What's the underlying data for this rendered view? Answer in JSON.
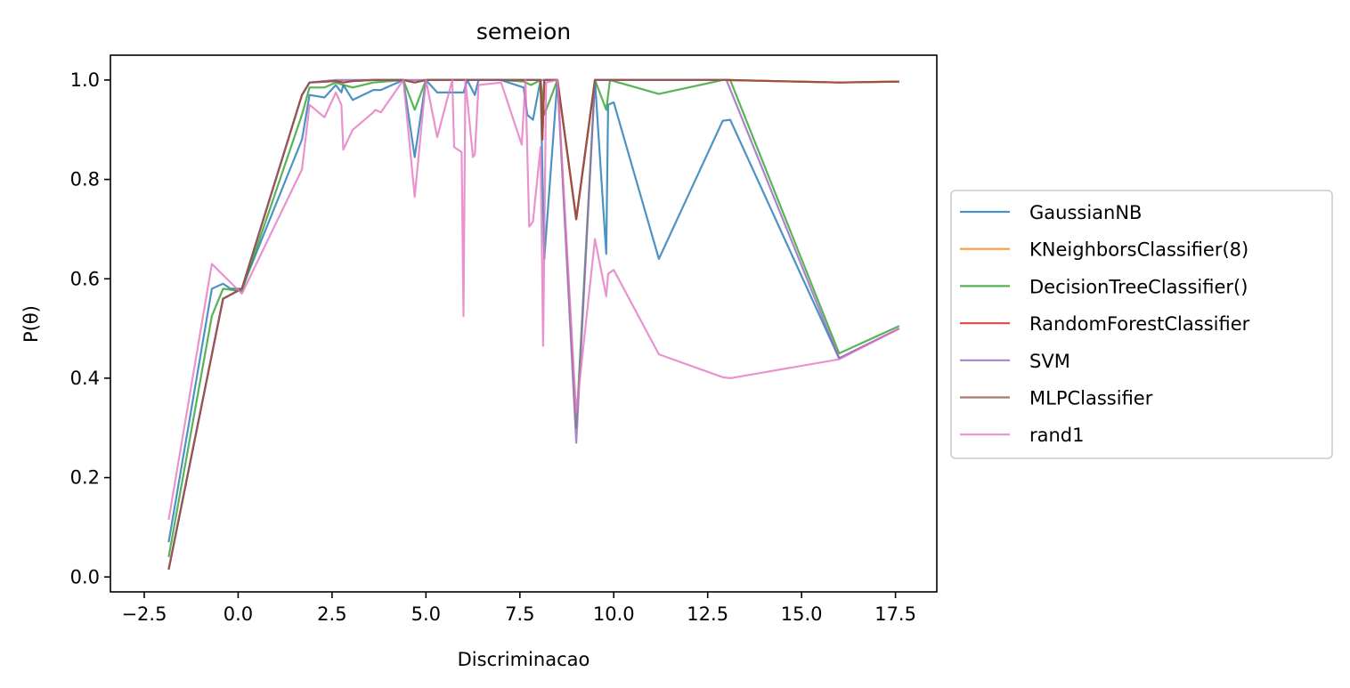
{
  "chart_data": {
    "type": "line",
    "title": "semeion",
    "xlabel": "Discriminacao",
    "ylabel": "P(θ)",
    "xlim": [
      -3.4,
      18.6
    ],
    "ylim": [
      -0.03,
      1.05
    ],
    "xticks": [
      -2.5,
      0.0,
      2.5,
      5.0,
      7.5,
      10.0,
      12.5,
      15.0,
      17.5
    ],
    "xtick_labels": [
      "−2.5",
      "0.0",
      "2.5",
      "5.0",
      "7.5",
      "10.0",
      "12.5",
      "15.0",
      "17.5"
    ],
    "yticks": [
      0.0,
      0.2,
      0.4,
      0.6,
      0.8,
      1.0
    ],
    "ytick_labels": [
      "0.0",
      "0.2",
      "0.4",
      "0.6",
      "0.8",
      "1.0"
    ],
    "grid": false,
    "legend_position": "outside-right",
    "series": [
      {
        "name": "GaussianNB",
        "color": "#1f77b4",
        "x": [
          -1.85,
          -0.7,
          -0.4,
          -0.2,
          0.1,
          1.7,
          1.9,
          2.3,
          2.6,
          2.75,
          2.8,
          3.05,
          3.6,
          3.8,
          4.4,
          4.7,
          5.0,
          5.3,
          5.8,
          6.0,
          6.1,
          6.3,
          6.4,
          7.0,
          7.6,
          7.7,
          7.85,
          8.05,
          8.15,
          8.5,
          9.0,
          9.5,
          9.8,
          9.85,
          10.0,
          11.2,
          12.9,
          13.1,
          16.0,
          17.6
        ],
        "values": [
          0.07,
          0.58,
          0.59,
          0.58,
          0.58,
          0.88,
          0.97,
          0.965,
          0.99,
          0.975,
          0.99,
          0.96,
          0.98,
          0.98,
          1.0,
          0.845,
          1.0,
          0.975,
          0.975,
          0.975,
          1.0,
          0.97,
          1.0,
          1.0,
          0.985,
          0.93,
          0.92,
          1.0,
          0.64,
          1.0,
          0.72,
          1.0,
          0.65,
          0.95,
          0.955,
          0.64,
          0.918,
          0.92,
          0.44,
          0.5
        ]
      },
      {
        "name": "KNeighborsClassifier(8)",
        "color": "#ff7f0e",
        "x": [
          -1.85,
          -0.4,
          0.1,
          1.7,
          1.9,
          2.6,
          2.8,
          3.05,
          3.6,
          4.4,
          4.7,
          5.0,
          6.0,
          7.0,
          8.05,
          8.1,
          8.15,
          8.5,
          9.0,
          9.5,
          13.0,
          16.0,
          17.6
        ],
        "values": [
          0.015,
          0.56,
          0.58,
          0.97,
          0.995,
          0.998,
          0.995,
          0.998,
          1.0,
          1.0,
          0.995,
          1.0,
          1.0,
          1.0,
          1.0,
          0.88,
          1.0,
          1.0,
          0.72,
          1.0,
          1.0,
          0.995,
          0.997
        ]
      },
      {
        "name": "DecisionTreeClassifier()",
        "color": "#2ca02c",
        "x": [
          -1.85,
          -0.7,
          -0.4,
          0.1,
          1.7,
          1.9,
          2.3,
          2.6,
          2.8,
          3.05,
          3.6,
          4.4,
          4.7,
          5.0,
          6.0,
          7.0,
          7.6,
          7.8,
          8.05,
          8.15,
          8.5,
          9.0,
          9.5,
          9.8,
          9.9,
          11.2,
          12.9,
          13.1,
          16.0,
          17.6
        ],
        "values": [
          0.04,
          0.525,
          0.58,
          0.575,
          0.93,
          0.985,
          0.985,
          0.995,
          0.99,
          0.985,
          0.995,
          1.0,
          0.94,
          1.0,
          1.0,
          1.0,
          0.997,
          0.99,
          1.0,
          0.93,
          1.0,
          0.3,
          1.0,
          0.94,
          1.0,
          0.972,
          1.0,
          1.0,
          0.45,
          0.505
        ]
      },
      {
        "name": "RandomForestClassifier",
        "color": "#d62728",
        "x": [
          -1.85,
          -0.4,
          0.1,
          1.7,
          1.9,
          2.6,
          2.8,
          3.05,
          3.6,
          4.4,
          4.7,
          5.0,
          6.0,
          7.0,
          8.05,
          8.1,
          8.15,
          8.5,
          9.0,
          9.5,
          13.0,
          16.0,
          17.6
        ],
        "values": [
          0.015,
          0.56,
          0.58,
          0.97,
          0.995,
          0.998,
          0.995,
          0.998,
          1.0,
          1.0,
          0.995,
          1.0,
          1.0,
          1.0,
          1.0,
          0.88,
          1.0,
          1.0,
          0.72,
          1.0,
          1.0,
          0.995,
          0.997
        ]
      },
      {
        "name": "SVM",
        "color": "#9467bd",
        "x": [
          -1.85,
          -0.4,
          0.1,
          1.7,
          1.9,
          2.6,
          3.6,
          4.4,
          5.0,
          6.0,
          7.0,
          8.05,
          8.5,
          9.0,
          9.5,
          13.0,
          16.0,
          17.6
        ],
        "values": [
          0.015,
          0.56,
          0.58,
          0.97,
          0.995,
          1.0,
          1.0,
          1.0,
          1.0,
          1.0,
          1.0,
          1.0,
          1.0,
          0.27,
          1.0,
          1.0,
          0.44,
          0.5
        ]
      },
      {
        "name": "MLPClassifier",
        "color": "#8c564b",
        "x": [
          -1.85,
          -0.4,
          0.1,
          1.7,
          1.9,
          2.6,
          2.8,
          3.05,
          3.6,
          4.4,
          4.7,
          5.0,
          6.0,
          7.0,
          8.05,
          8.1,
          8.15,
          8.5,
          9.0,
          9.5,
          13.0,
          16.0,
          17.6
        ],
        "values": [
          0.015,
          0.56,
          0.58,
          0.97,
          0.995,
          0.998,
          0.995,
          0.998,
          1.0,
          1.0,
          0.995,
          1.0,
          1.0,
          1.0,
          1.0,
          0.88,
          1.0,
          1.0,
          0.72,
          1.0,
          1.0,
          0.995,
          0.997
        ]
      },
      {
        "name": "rand1",
        "color": "#e377c2",
        "x": [
          -1.85,
          -0.7,
          0.1,
          1.7,
          1.9,
          2.3,
          2.6,
          2.75,
          2.8,
          3.05,
          3.6,
          3.65,
          3.8,
          4.4,
          4.7,
          5.0,
          5.3,
          5.7,
          5.75,
          5.95,
          6.0,
          6.05,
          6.25,
          6.3,
          6.4,
          7.0,
          7.55,
          7.65,
          7.75,
          7.85,
          8.05,
          8.12,
          8.2,
          8.5,
          9.0,
          9.5,
          9.8,
          9.85,
          10.0,
          11.2,
          12.9,
          13.1,
          16.0,
          17.6
        ],
        "values": [
          0.115,
          0.63,
          0.57,
          0.82,
          0.95,
          0.925,
          0.975,
          0.95,
          0.86,
          0.9,
          0.935,
          0.94,
          0.935,
          1.0,
          0.765,
          1.0,
          0.885,
          1.0,
          0.865,
          0.855,
          0.525,
          1.0,
          0.845,
          0.85,
          0.99,
          0.995,
          0.87,
          1.0,
          0.705,
          0.715,
          0.865,
          0.465,
          0.995,
          1.0,
          0.33,
          0.68,
          0.565,
          0.61,
          0.618,
          0.448,
          0.402,
          0.4,
          0.438,
          0.5
        ]
      }
    ]
  }
}
